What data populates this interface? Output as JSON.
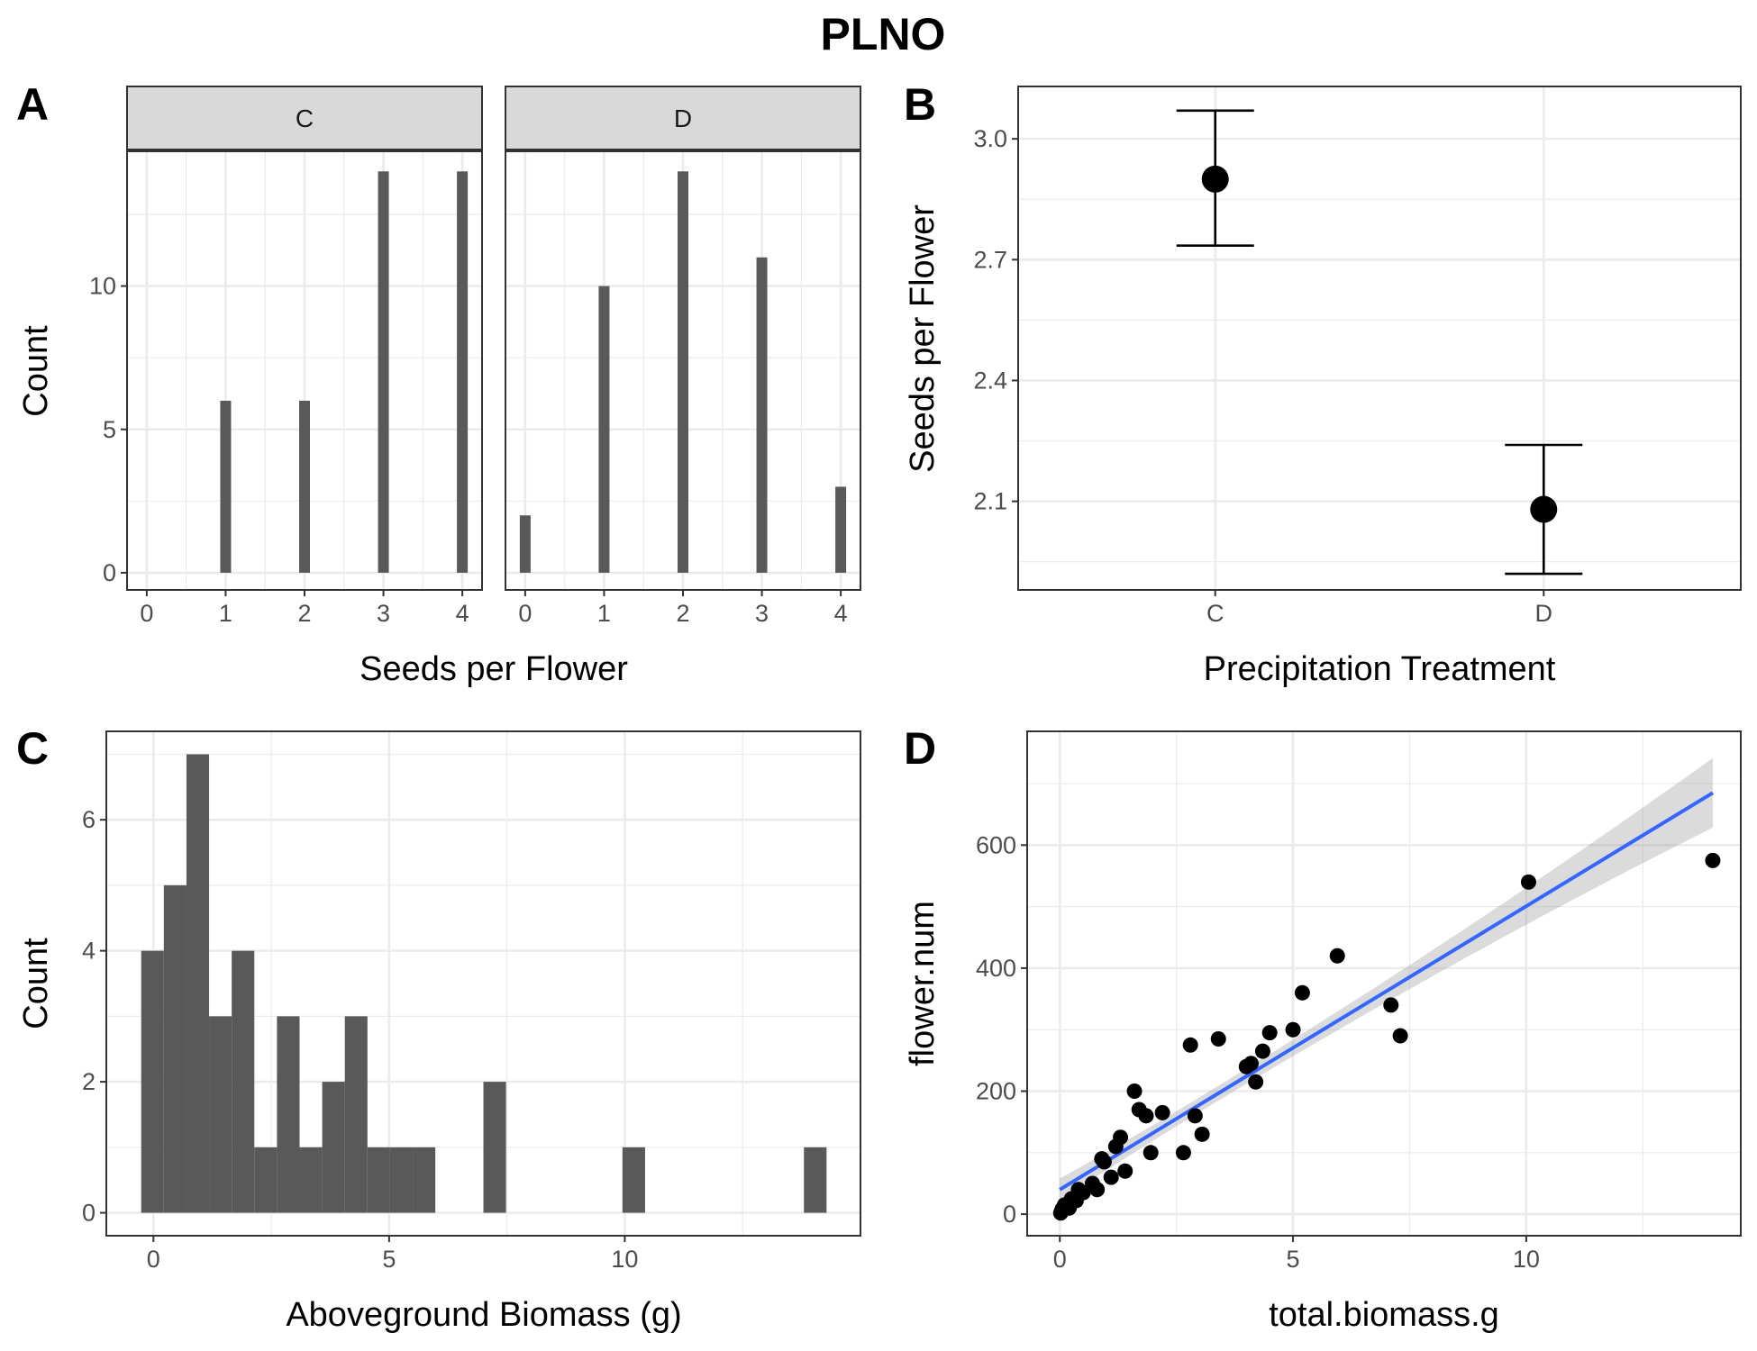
{
  "title": "PLNO",
  "chart_data": [
    {
      "panel": "A",
      "type": "bar",
      "facets": [
        {
          "label": "C",
          "x": [
            0,
            1,
            2,
            3,
            4
          ],
          "values": [
            0,
            6,
            6,
            14,
            14
          ]
        },
        {
          "label": "D",
          "x": [
            0,
            1,
            2,
            3,
            4
          ],
          "values": [
            2,
            10,
            14,
            11,
            3
          ]
        }
      ],
      "xlabel": "Seeds per Flower",
      "ylabel": "Count",
      "xticks": [
        "0",
        "1",
        "2",
        "3",
        "4"
      ],
      "yticks": [
        "0",
        "5",
        "10"
      ],
      "ylim": [
        -0.6,
        14.7
      ],
      "grid": true
    },
    {
      "panel": "B",
      "type": "scatter",
      "categories": [
        "C",
        "D"
      ],
      "points": [
        {
          "category": "C",
          "mean": 2.9,
          "lower": 2.735,
          "upper": 3.07
        },
        {
          "category": "D",
          "mean": 2.08,
          "lower": 1.92,
          "upper": 2.24
        }
      ],
      "xlabel": "Precipitation Treatment",
      "ylabel": "Seeds per Flower",
      "yticks": [
        "2.1",
        "2.4",
        "2.7",
        "3.0"
      ],
      "ylim": [
        1.88,
        3.13
      ],
      "grid": true
    },
    {
      "panel": "C",
      "type": "bar",
      "bin_width": 0.48,
      "bins": [
        {
          "start": -0.26,
          "count": 4
        },
        {
          "start": 0.22,
          "count": 5
        },
        {
          "start": 0.7,
          "count": 7
        },
        {
          "start": 1.18,
          "count": 3
        },
        {
          "start": 1.66,
          "count": 4
        },
        {
          "start": 2.14,
          "count": 1
        },
        {
          "start": 2.62,
          "count": 3
        },
        {
          "start": 3.1,
          "count": 1
        },
        {
          "start": 3.58,
          "count": 2
        },
        {
          "start": 4.06,
          "count": 3
        },
        {
          "start": 4.54,
          "count": 1
        },
        {
          "start": 5.02,
          "count": 1
        },
        {
          "start": 5.5,
          "count": 1
        },
        {
          "start": 7.0,
          "count": 2
        },
        {
          "start": 9.95,
          "count": 1
        },
        {
          "start": 13.8,
          "count": 1
        }
      ],
      "xlabel": "Aboveground Biomass (g)",
      "ylabel": "Count",
      "xticks": [
        "0",
        "5",
        "10"
      ],
      "yticks": [
        "0",
        "2",
        "4",
        "6"
      ],
      "xlim": [
        -1.0,
        15.0
      ],
      "ylim": [
        -0.35,
        7.35
      ],
      "grid": true
    },
    {
      "panel": "D",
      "type": "scatter",
      "points": [
        [
          0.02,
          2
        ],
        [
          0.05,
          8
        ],
        [
          0.1,
          15
        ],
        [
          0.2,
          10
        ],
        [
          0.25,
          25
        ],
        [
          0.35,
          22
        ],
        [
          0.4,
          40
        ],
        [
          0.5,
          35
        ],
        [
          0.7,
          50
        ],
        [
          0.8,
          40
        ],
        [
          0.9,
          90
        ],
        [
          0.95,
          85
        ],
        [
          1.1,
          60
        ],
        [
          1.2,
          110
        ],
        [
          1.3,
          125
        ],
        [
          1.4,
          70
        ],
        [
          1.6,
          200
        ],
        [
          1.7,
          170
        ],
        [
          1.85,
          160
        ],
        [
          1.95,
          100
        ],
        [
          2.2,
          165
        ],
        [
          2.65,
          100
        ],
        [
          2.8,
          275
        ],
        [
          2.9,
          160
        ],
        [
          3.05,
          130
        ],
        [
          3.4,
          285
        ],
        [
          4.0,
          240
        ],
        [
          4.1,
          245
        ],
        [
          4.2,
          215
        ],
        [
          4.35,
          265
        ],
        [
          4.5,
          295
        ],
        [
          5.0,
          300
        ],
        [
          5.2,
          360
        ],
        [
          5.95,
          420
        ],
        [
          7.1,
          340
        ],
        [
          7.3,
          290
        ],
        [
          10.05,
          540
        ],
        [
          14.0,
          575
        ]
      ],
      "fit": {
        "x0": 0.0,
        "y0": 40,
        "x1": 14.0,
        "y1": 685,
        "band_lo": [
          22,
          632
        ],
        "band_hi": [
          58,
          745
        ],
        "color": "#3366ff"
      },
      "xlabel": "total.biomass.g",
      "ylabel": "flower.num",
      "xticks": [
        "0",
        "5",
        "10"
      ],
      "yticks": [
        "0",
        "200",
        "400",
        "600"
      ],
      "xlim": [
        -0.7,
        14.6
      ],
      "ylim": [
        -35,
        785
      ],
      "grid": true
    }
  ]
}
